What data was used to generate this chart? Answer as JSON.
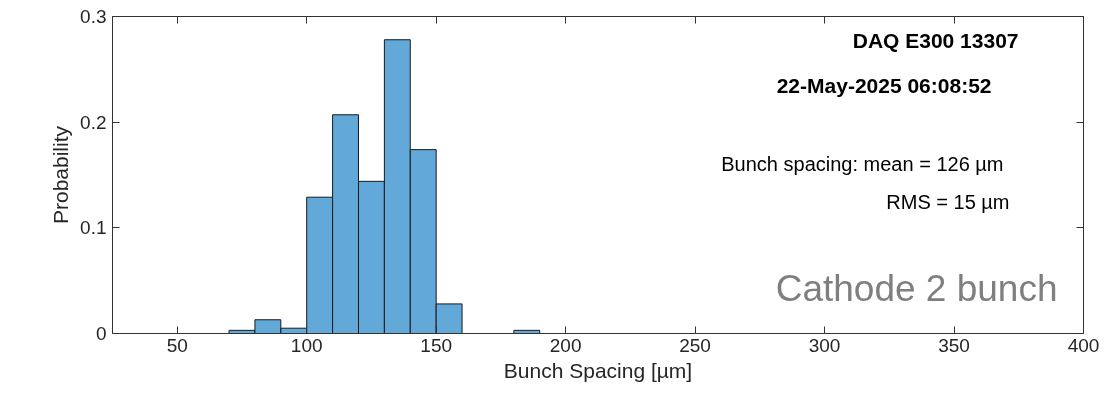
{
  "chart_data": {
    "type": "histogram",
    "title": "DAQ E300 13307",
    "subtitle": "22-May-2025 06:08:52",
    "xlabel": "Bunch Spacing [µm]",
    "ylabel": "Probability",
    "bins": [
      70,
      80,
      90,
      100,
      110,
      120,
      130,
      140,
      150,
      160,
      170,
      180,
      190
    ],
    "values": [
      0.003,
      0.013,
      0.005,
      0.129,
      0.207,
      0.144,
      0.278,
      0.174,
      0.028,
      0,
      0,
      0.003
    ],
    "color": "#62a8d8",
    "xlim": [
      25,
      400
    ],
    "xticks": [
      50,
      100,
      150,
      200,
      250,
      300,
      350,
      400
    ],
    "ylim": [
      0,
      0.3
    ],
    "yticks": [
      0,
      0.1,
      0.2,
      0.3
    ],
    "annotations": [
      "Bunch spacing: mean = 126 µm",
      "RMS = 15 µm",
      "Cathode 2 bunch"
    ],
    "grid": false
  }
}
